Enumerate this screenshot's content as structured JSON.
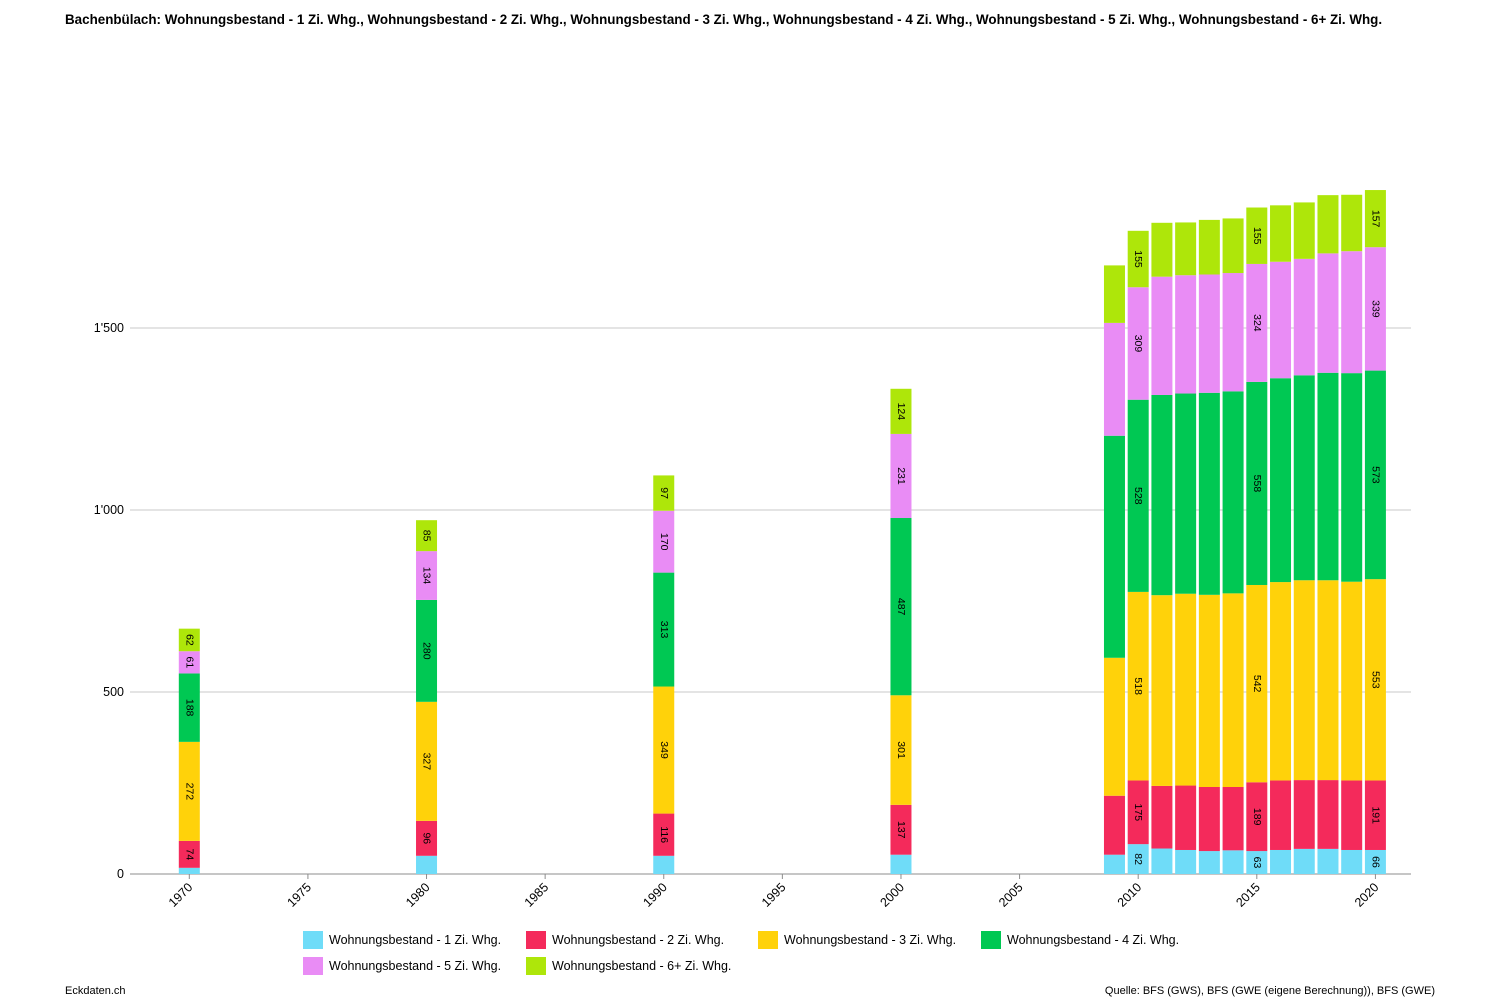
{
  "header": {
    "title": "Bachenbülach: Wohnungsbestand - 1 Zi. Whg., Wohnungsbestand - 2 Zi. Whg., Wohnungsbestand - 3 Zi. Whg., Wohnungsbestand - 4 Zi. Whg., Wohnungsbestand - 5 Zi. Whg., Wohnungsbestand - 6+ Zi. Whg."
  },
  "footer": {
    "left": "Eckdaten.ch",
    "right": "Quelle: BFS (GWS), BFS (GWE (eigene Berechnung)), BFS (GWE)"
  },
  "chart_data": {
    "type": "bar",
    "stacked": true,
    "x_ticks": [
      "1970",
      "1975",
      "1980",
      "1985",
      "1990",
      "1995",
      "2000",
      "2005",
      "2010",
      "2015",
      "2020"
    ],
    "y_ticks": [
      "0",
      "500",
      "1'000",
      "1'500"
    ],
    "ylim": [
      0,
      1900
    ],
    "grid": true,
    "legend_position": "bottom",
    "x": [
      1970,
      1980,
      1990,
      2000,
      2009,
      2010,
      2011,
      2012,
      2013,
      2014,
      2015,
      2016,
      2017,
      2018,
      2019,
      2020
    ],
    "series": [
      {
        "name": "Wohnungsbestand - 1 Zi. Whg.",
        "color": "#6fdcf8",
        "values": [
          17,
          50,
          50,
          53,
          53,
          82,
          70,
          66,
          63,
          65,
          63,
          66,
          69,
          69,
          66,
          66
        ]
      },
      {
        "name": "Wohnungsbestand - 2 Zi. Whg.",
        "color": "#f42a5b",
        "values": [
          74,
          96,
          116,
          137,
          162,
          175,
          172,
          177,
          176,
          174,
          189,
          191,
          189,
          189,
          191,
          191
        ]
      },
      {
        "name": "Wohnungsbestand - 3 Zi. Whg.",
        "color": "#ffd20a",
        "values": [
          272,
          327,
          349,
          301,
          379,
          518,
          524,
          527,
          528,
          532,
          542,
          545,
          549,
          549,
          546,
          553
        ]
      },
      {
        "name": "Wohnungsbestand - 4 Zi. Whg.",
        "color": "#00c853",
        "values": [
          188,
          280,
          313,
          487,
          610,
          528,
          550,
          550,
          555,
          555,
          558,
          560,
          563,
          570,
          573,
          573
        ]
      },
      {
        "name": "Wohnungsbestand - 5 Zi. Whg.",
        "color": "#e98cf5",
        "values": [
          61,
          134,
          170,
          231,
          310,
          309,
          325,
          325,
          325,
          325,
          324,
          320,
          320,
          328,
          335,
          339
        ]
      },
      {
        "name": "Wohnungsbestand - 6+ Zi. Whg.",
        "color": "#aee60a",
        "values": [
          62,
          85,
          97,
          124,
          158,
          155,
          148,
          145,
          150,
          150,
          155,
          155,
          155,
          160,
          155,
          157
        ]
      }
    ],
    "labeled_x": [
      1970,
      1980,
      1990,
      2000,
      2010,
      2015,
      2020
    ]
  }
}
